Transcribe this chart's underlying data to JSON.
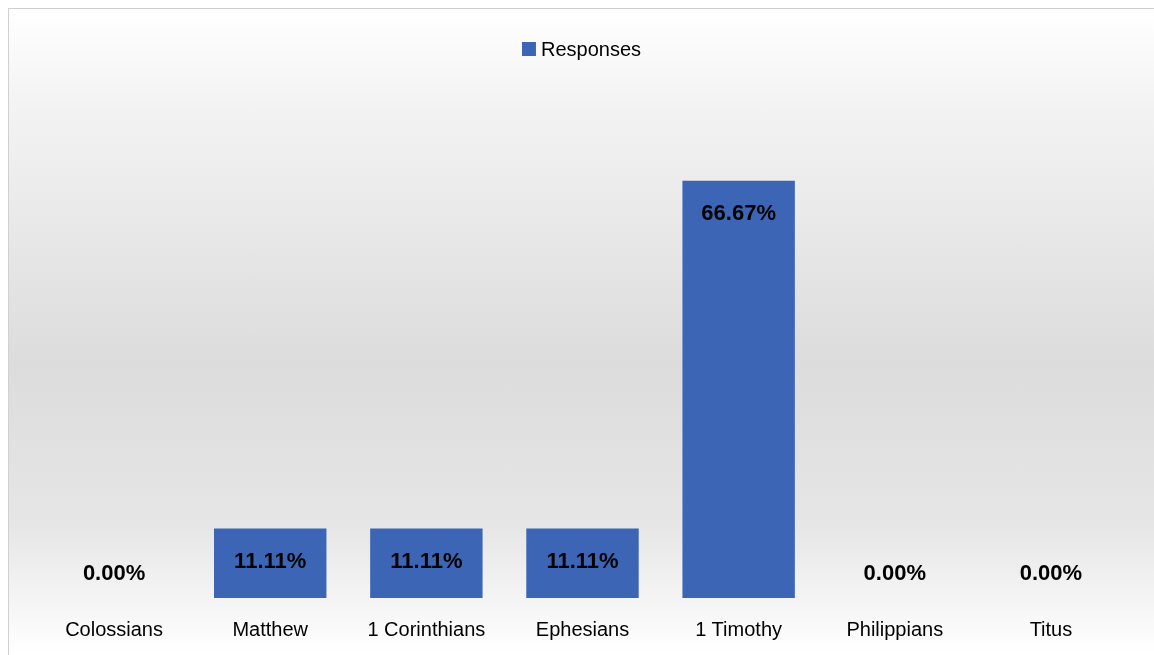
{
  "chart_data": {
    "type": "bar",
    "categories": [
      "Colossians",
      "Matthew",
      "1 Corinthians",
      "Ephesians",
      "1 Timothy",
      "Philippians",
      "Titus"
    ],
    "series": [
      {
        "name": "Responses",
        "color": "#3c66b5",
        "values": [
          0,
          11.11,
          11.11,
          11.11,
          66.67,
          0,
          0
        ],
        "value_labels": [
          "0.00%",
          "11.11%",
          "11.11%",
          "11.11%",
          "66.67%",
          "0.00%",
          "0.00%"
        ]
      }
    ],
    "tick_labels": "x",
    "grid": false,
    "legend": "top"
  }
}
